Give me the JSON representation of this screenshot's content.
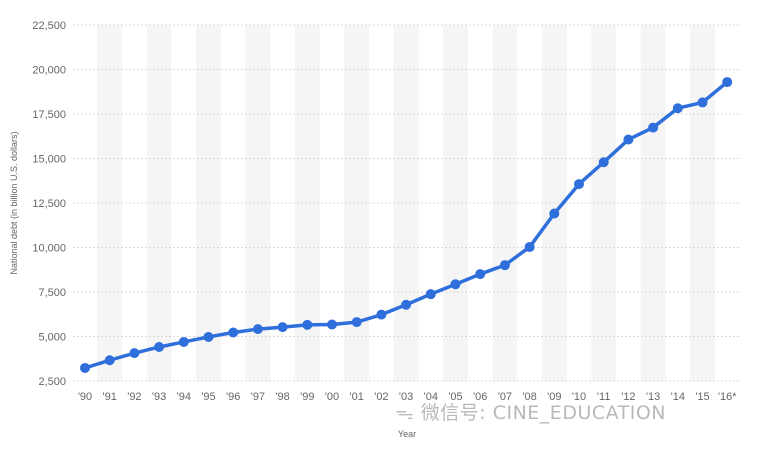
{
  "chart_data": {
    "type": "line",
    "xlabel": "Year",
    "ylabel": "National debt (in billion U.S. dollars)",
    "ylim": [
      2500,
      22500
    ],
    "yticks": [
      "2,500",
      "5,000",
      "7,500",
      "10,000",
      "12,500",
      "15,000",
      "17,500",
      "20,000",
      "22,500"
    ],
    "categories": [
      "'90",
      "'91",
      "'92",
      "'93",
      "'94",
      "'95",
      "'96",
      "'97",
      "'98",
      "'99",
      "'00",
      "'01",
      "'02",
      "'03",
      "'04",
      "'05",
      "'06",
      "'07",
      "'08",
      "'09",
      "'10",
      "'11",
      "'12",
      "'13",
      "'14",
      "'15",
      "'16*"
    ],
    "series": [
      {
        "values": [
          3233,
          3665,
          4065,
          4411,
          4693,
          4974,
          5225,
          5413,
          5526,
          5656,
          5674,
          5807,
          6228,
          6783,
          7379,
          7933,
          8507,
          9008,
          10025,
          11910,
          13562,
          14790,
          16066,
          16738,
          17824,
          18151,
          19294
        ]
      }
    ],
    "grid": true,
    "legend": "none",
    "colors": {
      "line": "#2f6fdb",
      "grid": "#d9d9d9",
      "band": "#f5f5f5"
    }
  },
  "watermark": "微信号: CINE_EDUCATION"
}
